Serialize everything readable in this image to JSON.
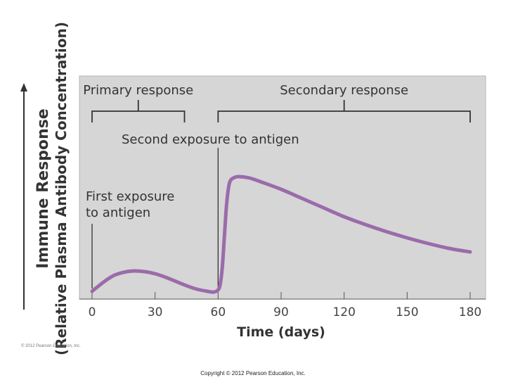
{
  "colors": {
    "line": "#9b6bab",
    "panel": "#d6d6d6",
    "panel_border": "#b5b5b5",
    "ink": "#333333"
  },
  "copyright": "Copyright © 2012 Pearson Education, Inc.",
  "credit": "© 2012 Pearson Education, Inc.",
  "chart_data": {
    "type": "line",
    "title": "",
    "ylabel_line1": "Immune Response",
    "ylabel_line2": "(Relative Plasma Antibody Concentration)",
    "xlabel": "Time (days)",
    "xlim": [
      0,
      180
    ],
    "ylim": [
      0,
      100
    ],
    "xticks": [
      0,
      30,
      60,
      90,
      120,
      150,
      180
    ],
    "xtick_labels": [
      "0",
      "30",
      "60",
      "90",
      "120",
      "150",
      "180"
    ],
    "grid": false,
    "series": [
      {
        "x": [
          0,
          5,
          10,
          15,
          20,
          25,
          30,
          35,
          40,
          45,
          50,
          55,
          58,
          60,
          61,
          62,
          63,
          64,
          65,
          66,
          68,
          70,
          75,
          80,
          90,
          100,
          110,
          120,
          130,
          140,
          150,
          160,
          170,
          180
        ],
        "y": [
          1,
          7,
          12,
          14.5,
          15.5,
          15,
          13.5,
          11,
          8,
          5,
          2.5,
          1,
          0.5,
          2,
          6,
          18,
          40,
          62,
          75,
          80,
          82,
          82.5,
          81.5,
          79,
          73.5,
          67,
          60.5,
          54,
          48.5,
          43.5,
          39,
          35,
          31.5,
          29
        ]
      }
    ],
    "brackets": [
      {
        "label": "Primary response",
        "x_start": 0,
        "x_end": 44
      },
      {
        "label": "Secondary response",
        "x_start": 60,
        "x_end": 180
      }
    ],
    "annotations": [
      {
        "label_lines": [
          "First exposure",
          "to antigen"
        ],
        "x": 0
      },
      {
        "label_lines": [
          "Second exposure to antigen"
        ],
        "x": 60
      }
    ]
  }
}
